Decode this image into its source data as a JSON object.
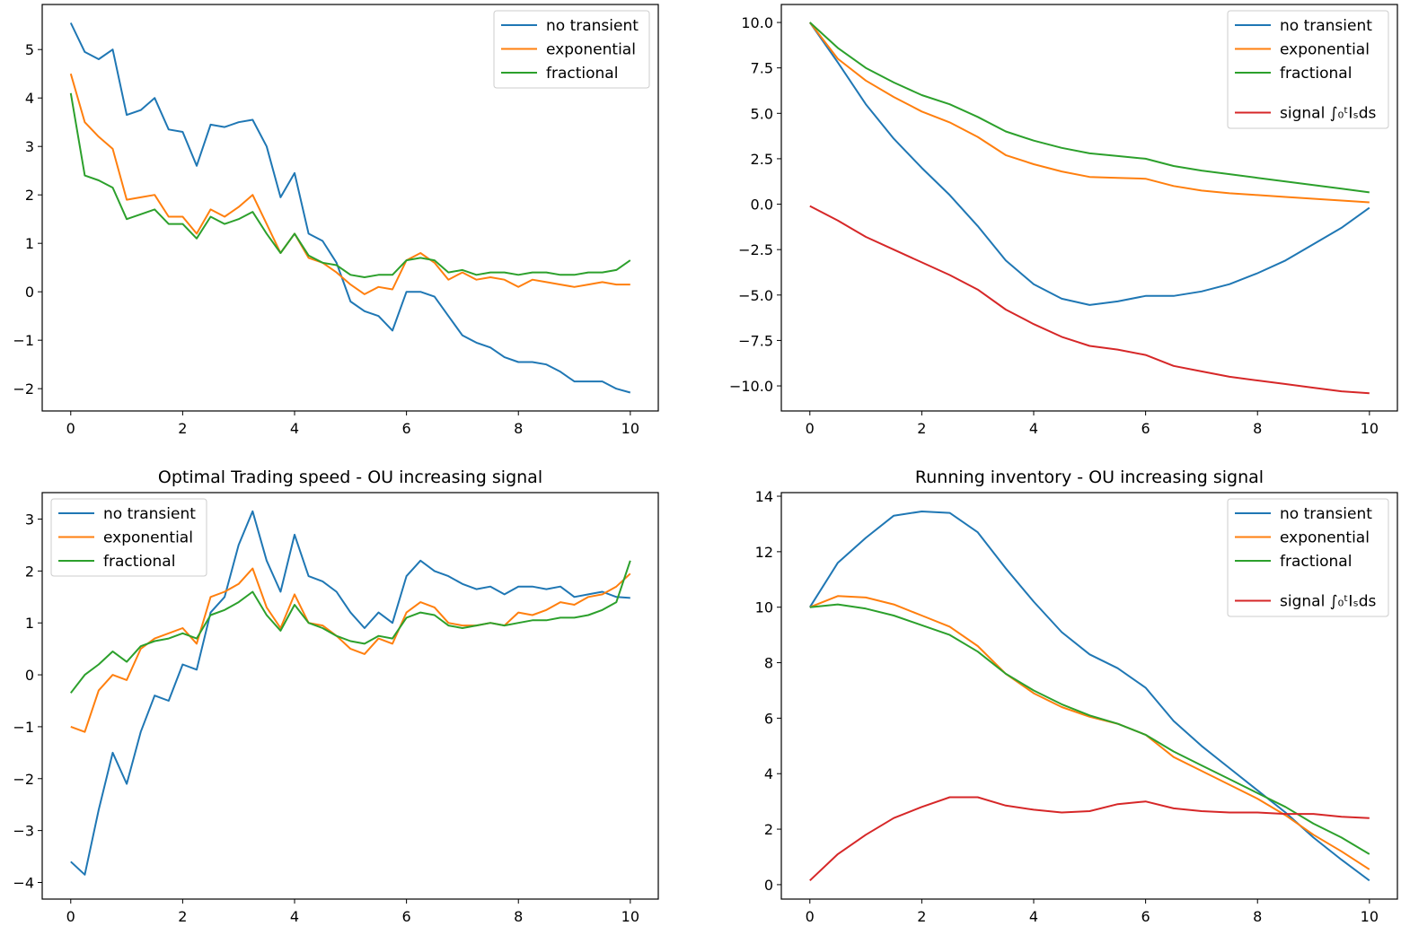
{
  "chart_data": [
    {
      "type": "line",
      "title": "",
      "xlabel": "",
      "ylabel": "",
      "xlim": [
        -0.51,
        10.5
      ],
      "ylim": [
        -2.46,
        5.93
      ],
      "xticks": [
        0,
        2,
        4,
        6,
        8,
        10
      ],
      "yticks": [
        -2,
        -1,
        0,
        1,
        2,
        3,
        4,
        5
      ],
      "grid": false,
      "legend": "top-right",
      "x": [
        0,
        0.25,
        0.5,
        0.75,
        1,
        1.25,
        1.5,
        1.75,
        2,
        2.25,
        2.5,
        2.75,
        3,
        3.25,
        3.5,
        3.75,
        4,
        4.25,
        4.5,
        4.75,
        5,
        5.25,
        5.5,
        5.75,
        6,
        6.25,
        6.5,
        6.75,
        7,
        7.25,
        7.5,
        7.75,
        8,
        8.25,
        8.5,
        8.75,
        9,
        9.25,
        9.5,
        9.75,
        10
      ],
      "series": [
        {
          "name": "no transient",
          "color": "#1f77b4",
          "values": [
            5.55,
            4.95,
            4.8,
            5.0,
            3.65,
            3.75,
            4.0,
            3.35,
            3.3,
            2.6,
            3.45,
            3.4,
            3.5,
            3.55,
            3.0,
            1.95,
            2.45,
            1.2,
            1.05,
            0.6,
            -0.2,
            -0.4,
            -0.5,
            -0.8,
            0.0,
            0.0,
            -0.1,
            -0.5,
            -0.9,
            -1.05,
            -1.15,
            -1.35,
            -1.45,
            -1.45,
            -1.5,
            -1.65,
            -1.85,
            -1.85,
            -1.85,
            -2.0,
            -2.08
          ]
        },
        {
          "name": "exponential",
          "color": "#ff7f0e",
          "values": [
            4.5,
            3.5,
            3.2,
            2.95,
            1.9,
            1.95,
            2.0,
            1.55,
            1.55,
            1.2,
            1.7,
            1.55,
            1.75,
            2.0,
            1.4,
            0.8,
            1.2,
            0.7,
            0.6,
            0.4,
            0.15,
            -0.05,
            0.1,
            0.05,
            0.65,
            0.8,
            0.6,
            0.25,
            0.4,
            0.25,
            0.3,
            0.25,
            0.1,
            0.25,
            0.2,
            0.15,
            0.1,
            0.15,
            0.2,
            0.15,
            0.15
          ]
        },
        {
          "name": "fractional",
          "color": "#2ca02c",
          "values": [
            4.1,
            2.4,
            2.3,
            2.15,
            1.5,
            1.6,
            1.7,
            1.4,
            1.4,
            1.1,
            1.55,
            1.4,
            1.5,
            1.65,
            1.2,
            0.8,
            1.2,
            0.75,
            0.6,
            0.55,
            0.35,
            0.3,
            0.35,
            0.35,
            0.65,
            0.7,
            0.65,
            0.4,
            0.45,
            0.35,
            0.4,
            0.4,
            0.35,
            0.4,
            0.4,
            0.35,
            0.35,
            0.4,
            0.4,
            0.45,
            0.65
          ]
        }
      ]
    },
    {
      "type": "line",
      "title": "",
      "xlabel": "",
      "ylabel": "",
      "xlim": [
        -0.51,
        10.5
      ],
      "ylim": [
        -11.38,
        10.99
      ],
      "xticks": [
        0,
        2,
        4,
        6,
        8,
        10
      ],
      "yticks": [
        -10.0,
        -7.5,
        -5.0,
        -2.5,
        0.0,
        2.5,
        5.0,
        7.5,
        10.0
      ],
      "ytick_labels": [
        "−10.0",
        "−7.5",
        "−5.0",
        "−2.5",
        "0.0",
        "2.5",
        "5.0",
        "7.5",
        "10.0"
      ],
      "grid": false,
      "legend": "top-right",
      "x": [
        0,
        0.5,
        1,
        1.5,
        2,
        2.5,
        3,
        3.5,
        4,
        4.5,
        5,
        5.5,
        6,
        6.5,
        7,
        7.5,
        8,
        8.5,
        9,
        9.5,
        10
      ],
      "series": [
        {
          "name": "no transient",
          "color": "#1f77b4",
          "values": [
            10,
            7.8,
            5.5,
            3.6,
            2.0,
            0.5,
            -1.2,
            -3.1,
            -4.4,
            -5.2,
            -5.55,
            -5.35,
            -5.05,
            -5.05,
            -4.8,
            -4.4,
            -3.8,
            -3.1,
            -2.2,
            -1.3,
            -0.2
          ]
        },
        {
          "name": "exponential",
          "color": "#ff7f0e",
          "values": [
            10,
            8.0,
            6.8,
            5.9,
            5.1,
            4.5,
            3.7,
            2.7,
            2.2,
            1.8,
            1.5,
            1.45,
            1.4,
            1.0,
            0.75,
            0.6,
            0.5,
            0.4,
            0.3,
            0.2,
            0.1
          ]
        },
        {
          "name": "fractional",
          "color": "#2ca02c",
          "values": [
            10,
            8.6,
            7.5,
            6.7,
            6.0,
            5.5,
            4.8,
            4.0,
            3.5,
            3.1,
            2.8,
            2.65,
            2.5,
            2.1,
            1.85,
            1.65,
            1.45,
            1.25,
            1.05,
            0.85,
            0.65
          ]
        },
        {
          "name": "signal ∫₀ᵗIₛds",
          "color": "#d62728",
          "values": [
            -0.1,
            -0.9,
            -1.8,
            -2.5,
            -3.2,
            -3.9,
            -4.7,
            -5.8,
            -6.6,
            -7.3,
            -7.8,
            -8.0,
            -8.3,
            -8.9,
            -9.2,
            -9.5,
            -9.7,
            -9.9,
            -10.1,
            -10.3,
            -10.4
          ]
        }
      ]
    },
    {
      "type": "line",
      "title": "Optimal Trading speed - OU increasing signal",
      "xlabel": "",
      "ylabel": "",
      "xlim": [
        -0.51,
        10.5
      ],
      "ylim": [
        -4.32,
        3.51
      ],
      "xticks": [
        0,
        2,
        4,
        6,
        8,
        10
      ],
      "yticks": [
        -4,
        -3,
        -2,
        -1,
        0,
        1,
        2,
        3
      ],
      "grid": false,
      "legend": "top-left",
      "x": [
        0,
        0.25,
        0.5,
        0.75,
        1,
        1.25,
        1.5,
        1.75,
        2,
        2.25,
        2.5,
        2.75,
        3,
        3.25,
        3.5,
        3.75,
        4,
        4.25,
        4.5,
        4.75,
        5,
        5.25,
        5.5,
        5.75,
        6,
        6.25,
        6.5,
        6.75,
        7,
        7.25,
        7.5,
        7.75,
        8,
        8.25,
        8.5,
        8.75,
        9,
        9.25,
        9.5,
        9.75,
        10
      ],
      "series": [
        {
          "name": "no transient",
          "color": "#1f77b4",
          "values": [
            -3.6,
            -3.85,
            -2.6,
            -1.5,
            -2.1,
            -1.1,
            -0.4,
            -0.5,
            0.2,
            0.1,
            1.2,
            1.5,
            2.5,
            3.15,
            2.2,
            1.6,
            2.7,
            1.9,
            1.8,
            1.6,
            1.2,
            0.9,
            1.2,
            1.0,
            1.9,
            2.2,
            2.0,
            1.9,
            1.75,
            1.65,
            1.7,
            1.55,
            1.7,
            1.7,
            1.65,
            1.7,
            1.5,
            1.55,
            1.6,
            1.5,
            1.48
          ]
        },
        {
          "name": "exponential",
          "color": "#ff7f0e",
          "values": [
            -1.0,
            -1.1,
            -0.3,
            0.0,
            -0.1,
            0.5,
            0.7,
            0.8,
            0.9,
            0.6,
            1.5,
            1.6,
            1.75,
            2.05,
            1.3,
            0.9,
            1.55,
            1.0,
            0.95,
            0.75,
            0.5,
            0.4,
            0.7,
            0.6,
            1.2,
            1.4,
            1.3,
            1.0,
            0.95,
            0.95,
            1.0,
            0.95,
            1.2,
            1.15,
            1.25,
            1.4,
            1.35,
            1.5,
            1.55,
            1.7,
            1.95
          ]
        },
        {
          "name": "fractional",
          "color": "#2ca02c",
          "values": [
            -0.35,
            0.0,
            0.2,
            0.45,
            0.25,
            0.55,
            0.65,
            0.7,
            0.8,
            0.7,
            1.15,
            1.25,
            1.4,
            1.6,
            1.15,
            0.85,
            1.35,
            1.0,
            0.9,
            0.75,
            0.65,
            0.6,
            0.75,
            0.7,
            1.1,
            1.2,
            1.15,
            0.95,
            0.9,
            0.95,
            1.0,
            0.95,
            1.0,
            1.05,
            1.05,
            1.1,
            1.1,
            1.15,
            1.25,
            1.4,
            2.2
          ]
        }
      ]
    },
    {
      "type": "line",
      "title": "Running inventory - OU increasing signal",
      "xlabel": "",
      "ylabel": "",
      "xlim": [
        -0.51,
        10.5
      ],
      "ylim": [
        -0.52,
        14.13
      ],
      "xticks": [
        0,
        2,
        4,
        6,
        8,
        10
      ],
      "yticks": [
        0,
        2,
        4,
        6,
        8,
        10,
        12,
        14
      ],
      "grid": false,
      "legend": "top-right",
      "x": [
        0,
        0.5,
        1,
        1.5,
        2,
        2.5,
        3,
        3.5,
        4,
        4.5,
        5,
        5.5,
        6,
        6.5,
        7,
        7.5,
        8,
        8.5,
        9,
        9.5,
        10
      ],
      "series": [
        {
          "name": "no transient",
          "color": "#1f77b4",
          "values": [
            10,
            11.6,
            12.5,
            13.3,
            13.45,
            13.4,
            12.7,
            11.4,
            10.2,
            9.1,
            8.3,
            7.8,
            7.1,
            5.9,
            5.0,
            4.2,
            3.4,
            2.6,
            1.7,
            0.9,
            0.15
          ]
        },
        {
          "name": "exponential",
          "color": "#ff7f0e",
          "values": [
            10,
            10.4,
            10.35,
            10.1,
            9.7,
            9.3,
            8.6,
            7.6,
            6.9,
            6.4,
            6.05,
            5.8,
            5.4,
            4.6,
            4.1,
            3.6,
            3.1,
            2.5,
            1.8,
            1.2,
            0.55
          ]
        },
        {
          "name": "fractional",
          "color": "#2ca02c",
          "values": [
            10,
            10.1,
            9.95,
            9.7,
            9.35,
            9.0,
            8.4,
            7.6,
            7.0,
            6.5,
            6.1,
            5.8,
            5.4,
            4.8,
            4.3,
            3.8,
            3.3,
            2.8,
            2.2,
            1.7,
            1.1
          ]
        },
        {
          "name": "signal ∫₀ᵗIₛds",
          "color": "#d62728",
          "values": [
            0.15,
            1.1,
            1.8,
            2.4,
            2.8,
            3.15,
            3.15,
            2.85,
            2.7,
            2.6,
            2.65,
            2.9,
            3.0,
            2.75,
            2.65,
            2.6,
            2.6,
            2.55,
            2.55,
            2.45,
            2.4
          ]
        }
      ]
    }
  ]
}
